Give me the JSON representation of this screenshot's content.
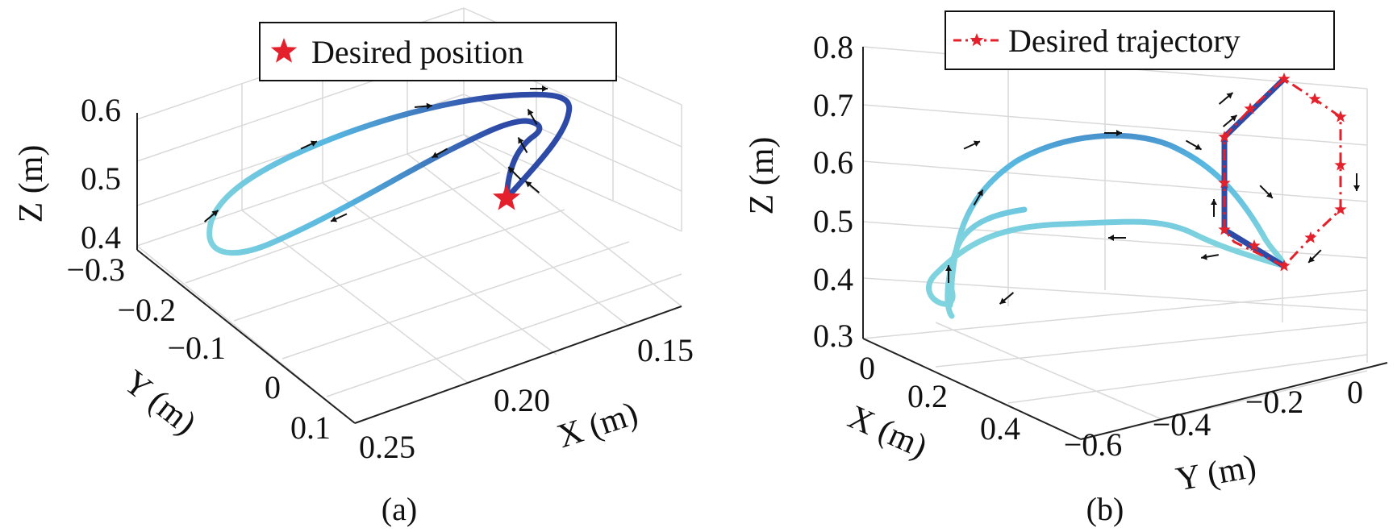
{
  "colors": {
    "traj_start": "#7fd3df",
    "traj_mid": "#56b6e0",
    "traj_end": "#2d4aa6",
    "desired": "#e3202b",
    "grid": "#d9d9d9",
    "axis": "#222222",
    "arrow": "#111111"
  },
  "chart_data": [
    {
      "type": "line",
      "view": "3d",
      "caption": "(a)",
      "xlabel": "X (m)",
      "ylabel": "Y (m)",
      "zlabel": "Z (m)",
      "x_ticks": [
        "0.15",
        "0.20",
        "0.25"
      ],
      "y_ticks": [
        "−0.3",
        "−0.2",
        "−0.1",
        "0",
        "0.1"
      ],
      "z_ticks": [
        "0.4",
        "0.5",
        "0.6"
      ],
      "xlim": [
        0.14,
        0.26
      ],
      "ylim": [
        -0.3,
        0.1
      ],
      "zlim": [
        0.38,
        0.63
      ],
      "grid": true,
      "legend": {
        "placement": "top-center",
        "entries": [
          {
            "label": "Desired position",
            "marker": "star",
            "color": "#e3202b"
          }
        ]
      },
      "desired_points": [
        {
          "x": 0.17,
          "y": 0.05,
          "z": 0.45
        }
      ],
      "series": [
        {
          "kind": "actual trajectory (color gradient = time)",
          "x": [
            0.17,
            0.162,
            0.157,
            0.162,
            0.18,
            0.21,
            0.24,
            0.255,
            0.252,
            0.235,
            0.21,
            0.185,
            0.168,
            0.16,
            0.165,
            0.17
          ],
          "y": [
            0.05,
            -0.02,
            -0.1,
            -0.18,
            -0.24,
            -0.27,
            -0.25,
            -0.19,
            -0.12,
            -0.05,
            0.01,
            0.05,
            0.05,
            0.02,
            0.04,
            0.05
          ],
          "z": [
            0.45,
            0.52,
            0.58,
            0.62,
            0.61,
            0.57,
            0.5,
            0.44,
            0.41,
            0.42,
            0.45,
            0.5,
            0.55,
            0.57,
            0.52,
            0.47
          ]
        }
      ],
      "direction_arrows": 10
    },
    {
      "type": "line",
      "view": "3d",
      "caption": "(b)",
      "xlabel": "X (m)",
      "ylabel": "Y (m)",
      "zlabel": "Z (m)",
      "x_ticks": [
        "0",
        "0.2",
        "0.4"
      ],
      "y_ticks": [
        "−0.6",
        "−0.4",
        "−0.2",
        "0"
      ],
      "z_ticks": [
        "0.3",
        "0.4",
        "0.5",
        "0.6",
        "0.7",
        "0.8"
      ],
      "xlim": [
        0,
        0.5
      ],
      "ylim": [
        -0.7,
        0.1
      ],
      "zlim": [
        0.3,
        0.8
      ],
      "grid": true,
      "legend": {
        "placement": "top-right",
        "entries": [
          {
            "label": "Desired trajectory",
            "marker": "star",
            "line": "dash-dot",
            "color": "#e3202b"
          }
        ]
      },
      "desired_trajectory": {
        "x": [
          0.3,
          0.3,
          0.3,
          0.3,
          0.3,
          0.3,
          0.3,
          0.3,
          0.3,
          0.3,
          0.3
        ],
        "y": [
          -0.26,
          -0.2,
          -0.1,
          -0.1,
          -0.1,
          -0.02,
          0.02,
          0.02,
          0.02,
          -0.02,
          -0.1
        ],
        "z": [
          0.4,
          0.47,
          0.5,
          0.58,
          0.66,
          0.72,
          0.68,
          0.63,
          0.55,
          0.5,
          0.43
        ]
      },
      "series": [
        {
          "kind": "actual trajectory (color gradient = time)",
          "x": [
            0.3,
            0.28,
            0.22,
            0.12,
            0.04,
            0.02,
            0.05,
            0.12,
            0.2,
            0.28,
            0.31,
            0.3,
            0.3,
            0.3,
            0.3,
            0.3,
            0.3
          ],
          "y": [
            -0.26,
            -0.3,
            -0.4,
            -0.52,
            -0.62,
            -0.65,
            -0.6,
            -0.5,
            -0.38,
            -0.28,
            -0.2,
            -0.12,
            -0.1,
            -0.1,
            -0.1,
            -0.02,
            0.02
          ],
          "z": [
            0.43,
            0.48,
            0.5,
            0.48,
            0.42,
            0.36,
            0.48,
            0.6,
            0.64,
            0.62,
            0.55,
            0.5,
            0.47,
            0.55,
            0.65,
            0.74,
            0.7
          ]
        }
      ],
      "direction_arrows": 14
    }
  ]
}
